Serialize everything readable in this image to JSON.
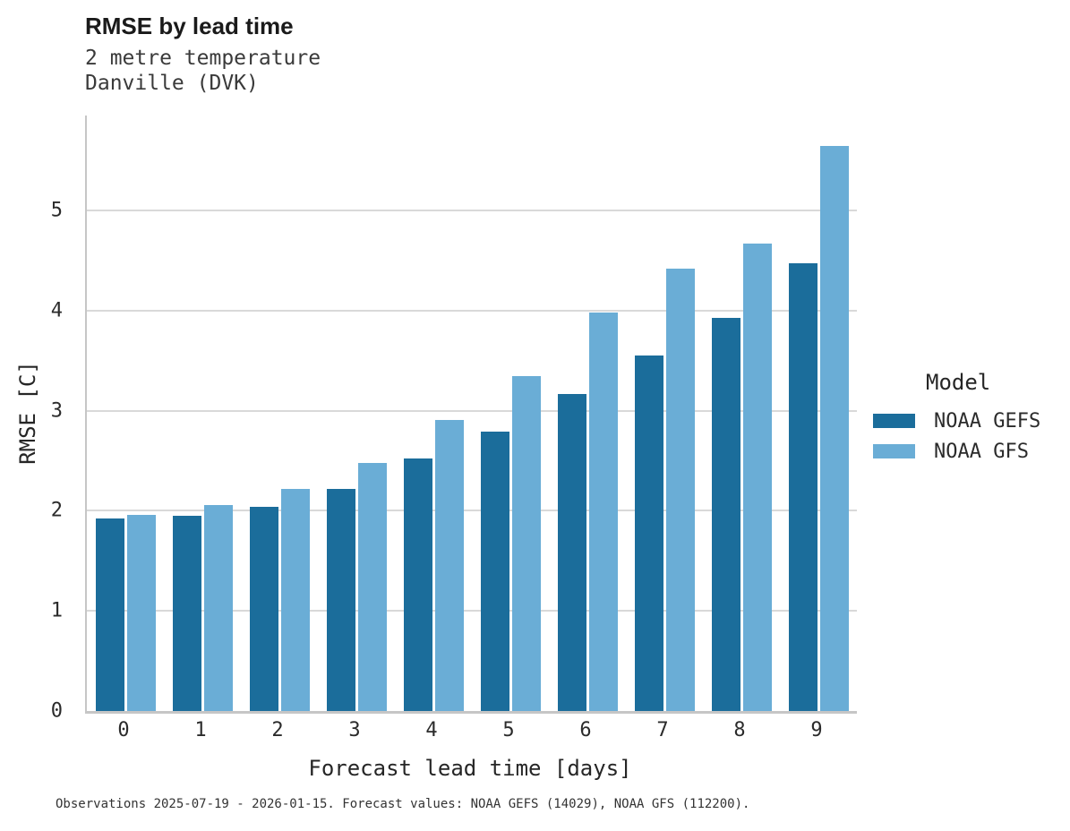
{
  "header": {
    "title": "RMSE by lead time",
    "subtitle1": "2 metre temperature",
    "subtitle2": "Danville (DVK)"
  },
  "legend": {
    "title": "Model",
    "items": [
      {
        "label": "NOAA GEFS",
        "color": "#1b6d9b"
      },
      {
        "label": "NOAA GFS",
        "color": "#6aadd6"
      }
    ]
  },
  "footer": {
    "text": "Observations 2025-07-19 - 2026-01-15. Forecast values: NOAA GEFS (14029), NOAA GFS (112200)."
  },
  "colors": {
    "gridline": "#d9d9d9",
    "spine": "#c6c6c6",
    "gefs_bar": "#1b6d9b",
    "gfs_bar": "#6aadd6"
  },
  "chart_data": {
    "type": "bar",
    "title": "RMSE by lead time",
    "subtitle": [
      "2 metre temperature",
      "Danville (DVK)"
    ],
    "categories": [
      "0",
      "1",
      "2",
      "3",
      "4",
      "5",
      "6",
      "7",
      "8",
      "9"
    ],
    "series": [
      {
        "name": "NOAA GEFS",
        "color": "#1b6d9b",
        "values": [
          1.92,
          1.95,
          2.04,
          2.22,
          2.52,
          2.79,
          3.17,
          3.55,
          3.93,
          4.47
        ]
      },
      {
        "name": "NOAA GFS",
        "color": "#6aadd6",
        "values": [
          1.96,
          2.06,
          2.22,
          2.48,
          2.91,
          3.35,
          3.98,
          4.42,
          4.67,
          5.65
        ]
      }
    ],
    "xlabel": "Forecast lead time [days]",
    "ylabel": "RMSE [C]",
    "ylim": [
      0,
      5.95
    ],
    "yticks": [
      0,
      1,
      2,
      3,
      4,
      5
    ],
    "grid": "horizontal",
    "legend_title": "Model",
    "legend_position": "right"
  }
}
